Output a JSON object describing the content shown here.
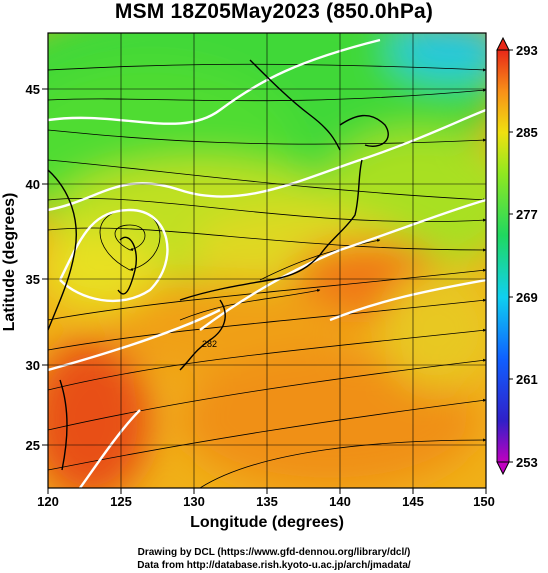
{
  "title": "MSM 18Z05May2023 (850.0hPa)",
  "map": {
    "xlabel": "Longitude (degrees)",
    "ylabel": "Latitude  (degrees)",
    "x_ticks": [
      "120",
      "125",
      "130",
      "135",
      "140",
      "145",
      "150"
    ],
    "y_ticks": [
      "25",
      "30",
      "35",
      "40",
      "45"
    ],
    "lon_range": [
      120,
      150
    ],
    "lat_range": [
      22.4,
      47.6
    ],
    "contour_label": "282"
  },
  "colorbar": {
    "ticks": [
      "293",
      "285",
      "277",
      "269",
      "261",
      "253"
    ],
    "range": [
      253,
      293
    ]
  },
  "credits": {
    "line1": "Drawing by DCL (https://www.gfd-dennou.org/library/dcl/)",
    "line2": "Data from http://database.rish.kyoto-u.ac.jp/arch/jmadata/"
  }
}
